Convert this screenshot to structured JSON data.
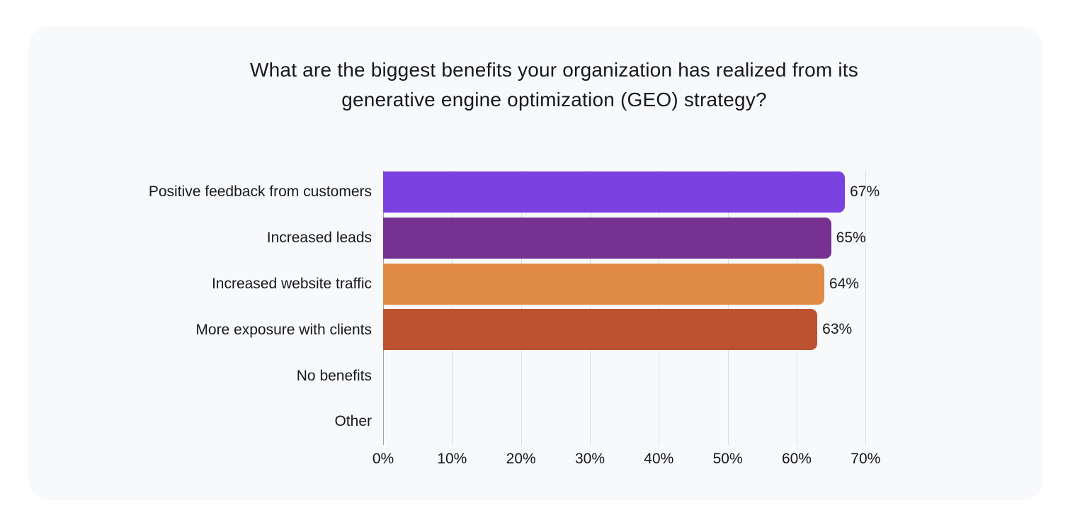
{
  "card": {
    "background": "#F8F9FB"
  },
  "chart_data": {
    "type": "bar",
    "orientation": "horizontal",
    "title": "What are the biggest benefits your organization has realized from its generative engine optimization (GEO) strategy?",
    "title_line1": "What are the biggest benefits your organization has realized from its",
    "title_line2": "generative engine optimization (GEO) strategy?",
    "categories": [
      "Positive feedback from customers",
      "Increased leads",
      "Increased website traffic",
      "More exposure with clients",
      "No benefits",
      "Other"
    ],
    "values": [
      67,
      65,
      64,
      63,
      null,
      null
    ],
    "value_labels": [
      "67%",
      "65%",
      "64%",
      "63%",
      "",
      ""
    ],
    "bar_colors": [
      "#7A43E1",
      "#763191",
      "#DF8A45",
      "#BD5230",
      null,
      null
    ],
    "x_ticks": [
      "0%",
      "10%",
      "20%",
      "30%",
      "40%",
      "50%",
      "60%",
      "70%"
    ],
    "x_tick_values": [
      0,
      10,
      20,
      30,
      40,
      50,
      60,
      70
    ],
    "xlim": [
      0,
      70
    ],
    "grid": "vertical-gridlines-on",
    "legend": "none",
    "gridline_color": "#DBDEE0",
    "axis_line_color": "#A0A5AA",
    "text_color": "#17181B"
  }
}
